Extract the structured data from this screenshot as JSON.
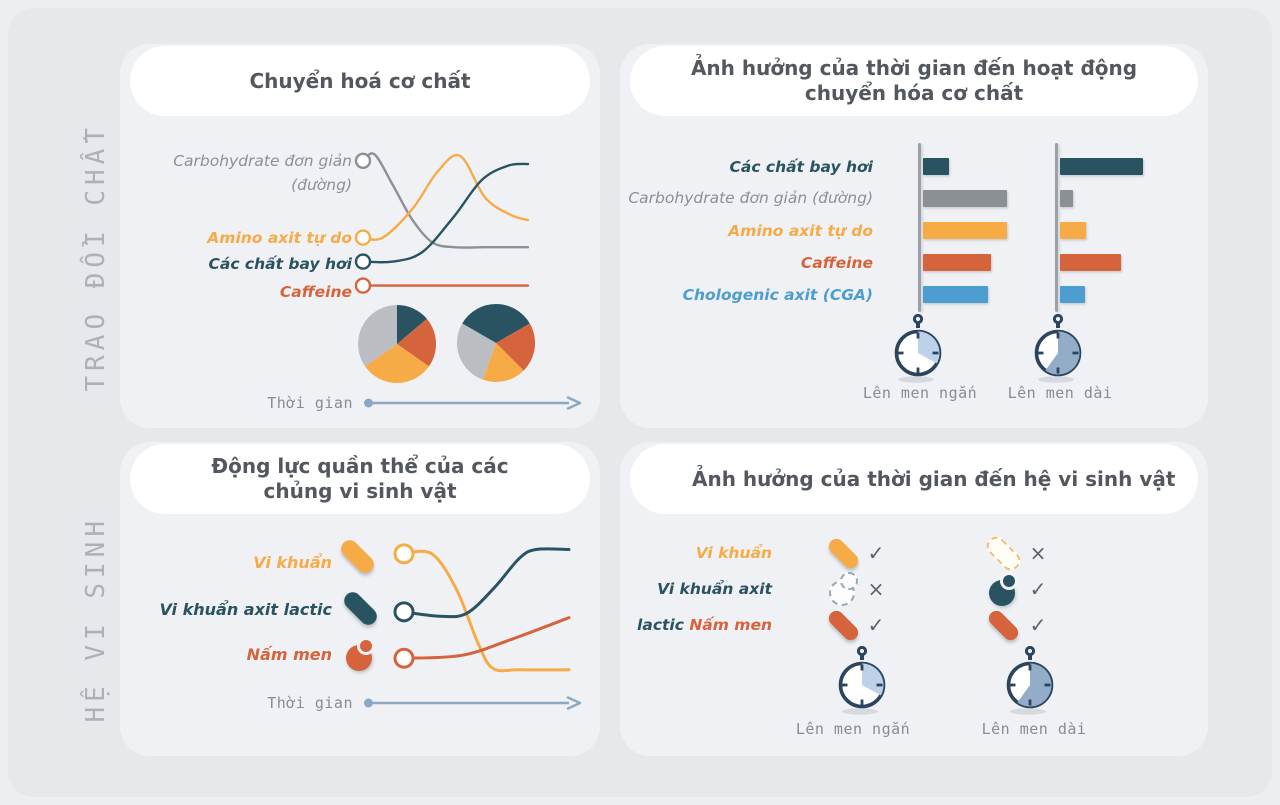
{
  "side_labels": {
    "metabolism": "TRAO ĐỔI CHẤT",
    "microbiome": "HỆ VI SINH"
  },
  "panels": {
    "tl": {
      "title": "Chuyển hoá cơ chất",
      "time_label": "Thời gian"
    },
    "tr": {
      "title_line1": "Ảnh hưởng của thời gian đến hoạt động",
      "title_line2": "chuyển hóa cơ chất"
    },
    "bl": {
      "title_line1": "Động lực quần thể của các",
      "title_line2": "chủng  vi sinh vật",
      "time_label": "Thời gian",
      "legend_icons": [
        "capsule-amber-solid",
        "capsule-teal-solid",
        "yeast-rust-solid"
      ]
    },
    "br": {
      "title": "Ảnh hưởng của thời gian đến hệ vi sinh vật"
    }
  },
  "stopwatches": {
    "short": {
      "label": "Lên men ngắn",
      "fraction": 0.33,
      "sector_color": "#bdd2ea"
    },
    "long": {
      "label": "Lên men dài",
      "fraction": 0.6,
      "sector_color": "#93acc8"
    }
  },
  "colors": {
    "teal": "#2a5362",
    "amber": "#f7ab47",
    "rust": "#d5643c",
    "gray": "#8b9095",
    "blue": "#4d9dd0",
    "pie_gray": "#babdc1",
    "navy": "#2b455f",
    "arrow": "#8ca8c2"
  },
  "chart_data": [
    {
      "id": "substrate_metabolism_lines",
      "type": "line",
      "title": "Chuyển hoá cơ chất",
      "xlabel": "Thời gian",
      "x_range": [
        0,
        100
      ],
      "y_range": [
        0,
        100
      ],
      "grid": false,
      "legend_position": "left",
      "series": [
        {
          "name": "Carbohydrate đơn giản (đường)",
          "label_lines": [
            "Carbohydrate đơn giản",
            "(đường)"
          ],
          "color": "#8b9095",
          "points": [
            [
              0,
              87
            ],
            [
              7,
              91
            ],
            [
              18,
              72
            ],
            [
              30,
              50
            ],
            [
              42,
              36
            ],
            [
              55,
              33
            ],
            [
              75,
              33
            ],
            [
              100,
              33
            ]
          ]
        },
        {
          "name": "Amino axit tự do",
          "color": "#f7ab47",
          "points": [
            [
              0,
              39
            ],
            [
              12,
              39
            ],
            [
              30,
              57
            ],
            [
              45,
              80
            ],
            [
              59,
              90
            ],
            [
              74,
              64
            ],
            [
              90,
              53
            ],
            [
              100,
              50
            ]
          ]
        },
        {
          "name": "Các chất bay hơi",
          "color": "#2a5362",
          "points": [
            [
              0,
              24
            ],
            [
              18,
              24
            ],
            [
              36,
              30
            ],
            [
              55,
              52
            ],
            [
              72,
              75
            ],
            [
              88,
              84
            ],
            [
              100,
              85
            ]
          ]
        },
        {
          "name": "Caffeine",
          "color": "#d5643c",
          "points": [
            [
              0,
              9
            ],
            [
              100,
              9
            ]
          ]
        }
      ]
    },
    {
      "id": "substrate_composition_pies",
      "type": "pie",
      "slice_colors": {
        "volatiles": "#2a5362",
        "caffeine": "#d5643c",
        "amino": "#f7ab47",
        "carb": "#babdc1"
      },
      "pies": [
        {
          "name": "early fermentation",
          "start_angle_deg": 0,
          "slices_deg": {
            "volatiles": 50,
            "caffeine": 75,
            "amino": 110,
            "carb": 125
          }
        },
        {
          "name": "late fermentation",
          "start_angle_deg": -60,
          "slices_deg": {
            "volatiles": 120,
            "caffeine": 75,
            "amino": 65,
            "carb": 100
          }
        }
      ]
    },
    {
      "id": "time_effect_on_substrates_bars",
      "type": "bar",
      "orientation": "horizontal",
      "title": "Ảnh hưởng của thời gian đến hoạt động chuyển hóa cơ chất",
      "value_range": [
        0,
        100
      ],
      "grid": false,
      "categories": [
        {
          "label": "Các chất bay hơi",
          "color": "#2a5362"
        },
        {
          "label": "Carbohydrate đơn giản (đường)",
          "color": "#8b9095"
        },
        {
          "label": "Amino axit tự do",
          "color": "#f7ab47"
        },
        {
          "label": "Caffeine",
          "color": "#d5643c"
        },
        {
          "label": "Chologenic axit (CGA)",
          "color": "#4d9dd0"
        }
      ],
      "series": [
        {
          "name": "Lên men ngắn",
          "values": [
            30,
            95,
            95,
            77,
            74
          ]
        },
        {
          "name": "Lên men dài",
          "values": [
            94,
            15,
            30,
            69,
            28
          ]
        }
      ]
    },
    {
      "id": "microbial_population_lines",
      "type": "line",
      "title": "Động lực quần thể của các chủng vi sinh vật",
      "xlabel": "Thời gian",
      "x_range": [
        0,
        100
      ],
      "y_range": [
        0,
        100
      ],
      "grid": false,
      "series": [
        {
          "name": "Vi khuẩn",
          "color": "#f7ab47",
          "points": [
            [
              0,
              87
            ],
            [
              17,
              87
            ],
            [
              32,
              62
            ],
            [
              45,
              25
            ],
            [
              54,
              8
            ],
            [
              70,
              7
            ],
            [
              100,
              7
            ]
          ]
        },
        {
          "name": "Vi khuẩn axit lactic",
          "color": "#2a5362",
          "points": [
            [
              0,
              47
            ],
            [
              22,
              44
            ],
            [
              38,
              46
            ],
            [
              55,
              64
            ],
            [
              70,
              84
            ],
            [
              80,
              90
            ],
            [
              100,
              90
            ]
          ]
        },
        {
          "name": "Nấm men",
          "color": "#d5643c",
          "points": [
            [
              0,
              15
            ],
            [
              35,
              17
            ],
            [
              65,
              28
            ],
            [
              100,
              43
            ]
          ]
        }
      ]
    },
    {
      "id": "time_effect_on_microbiome_table",
      "type": "table",
      "title": "Ảnh hưởng của thời gian đến hệ vi sinh vật",
      "columns": [
        "Lên men ngắn",
        "Lên men dài"
      ],
      "rows": [
        {
          "label_parts": [
            {
              "text": "Vi khuẩn",
              "color": "#f7ab47"
            }
          ],
          "short": {
            "icon": "capsule-amber-solid",
            "present": true
          },
          "long": {
            "icon": "capsule-amber-dashed",
            "present": false
          }
        },
        {
          "label_parts": [
            {
              "text": "Vi khuẩn axit",
              "color": "#2a5362"
            }
          ],
          "short": {
            "icon": "yeast-teal-dashed",
            "present": false
          },
          "long": {
            "icon": "yeast-teal-solid",
            "present": true
          }
        },
        {
          "label_parts": [
            {
              "text": "lactic",
              "color": "#2a5362"
            },
            {
              "text": "Nấm men",
              "color": "#d5643c"
            }
          ],
          "short": {
            "icon": "capsule-rust-solid",
            "present": true
          },
          "long": {
            "icon": "capsule-rust-solid",
            "present": true
          }
        }
      ]
    }
  ]
}
